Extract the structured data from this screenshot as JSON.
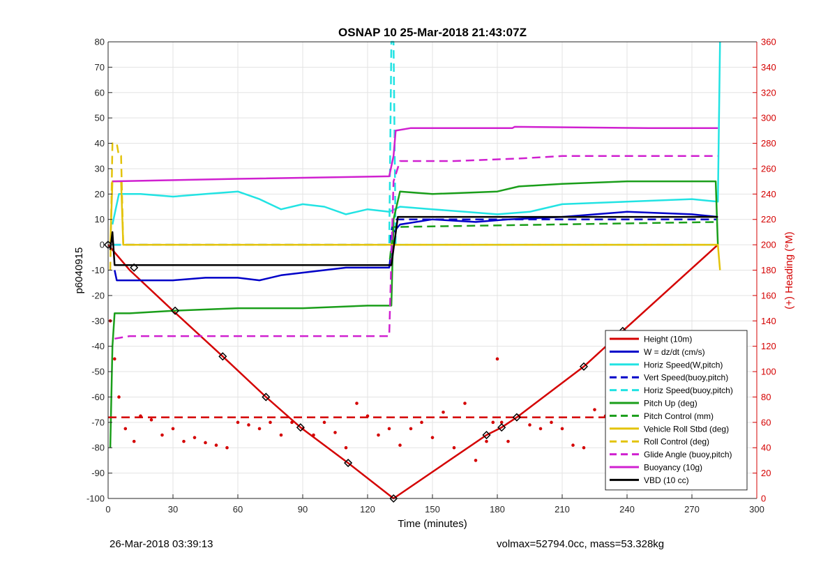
{
  "chart_data": {
    "type": "line",
    "title": "OSNAP 10 25-Mar-2018 21:43:07Z",
    "xlabel": "Time (minutes)",
    "ylabel": "p6040915",
    "ylabel_right": "(+) Heading (°M)",
    "xlim": [
      0,
      300
    ],
    "ylim": [
      -100,
      80
    ],
    "ylim_right": [
      0,
      360
    ],
    "x_ticks": [
      "0",
      "30",
      "60",
      "90",
      "120",
      "150",
      "180",
      "210",
      "240",
      "270",
      "300"
    ],
    "y_ticks": [
      "80",
      "70",
      "60",
      "50",
      "40",
      "30",
      "20",
      "10",
      "0",
      "-10",
      "-20",
      "-30",
      "-40",
      "-50",
      "-60",
      "-70",
      "-80",
      "-90",
      "-100"
    ],
    "y_right_ticks": [
      "360",
      "340",
      "320",
      "300",
      "280",
      "260",
      "240",
      "220",
      "200",
      "180",
      "160",
      "140",
      "120",
      "100",
      "80",
      "60",
      "40",
      "20",
      "0"
    ],
    "grid": true,
    "legend_position": "bottom-right",
    "series": [
      {
        "name": "Height (10m)",
        "color": "#d40000",
        "dash": "solid",
        "x": [
          0,
          10,
          30,
          53,
          73,
          89,
          111,
          132,
          175,
          182,
          189,
          220,
          238,
          282
        ],
        "y": [
          0,
          -10,
          -26,
          -44,
          -60,
          -72,
          -86,
          -100,
          -75,
          -72,
          -68,
          -48,
          -34,
          0
        ]
      },
      {
        "name": "W = dz/dt (cm/s)",
        "color": "#0000c8",
        "dash": "solid",
        "x": [
          3,
          4,
          10,
          20,
          30,
          45,
          60,
          70,
          80,
          90,
          100,
          110,
          120,
          130,
          132,
          135,
          150,
          170,
          185,
          210,
          240,
          270,
          282
        ],
        "y": [
          -10,
          -14,
          -14,
          -14,
          -14,
          -13,
          -13,
          -14,
          -12,
          -11,
          -10,
          -9,
          -9,
          -9,
          5,
          8,
          10,
          9,
          10,
          11,
          13,
          12,
          11
        ]
      },
      {
        "name": "Horiz Speed(W,pitch)",
        "color": "#22e3e3",
        "dash": "solid",
        "x": [
          2,
          5,
          15,
          30,
          45,
          60,
          70,
          80,
          90,
          100,
          110,
          120,
          130,
          135,
          150,
          165,
          180,
          195,
          210,
          240,
          270,
          282,
          283
        ],
        "y": [
          8,
          20,
          20,
          19,
          20,
          21,
          18,
          14,
          16,
          15,
          12,
          14,
          13,
          15,
          14,
          13,
          12,
          13,
          16,
          17,
          18,
          17,
          80
        ]
      },
      {
        "name": "Vert Speed(buoy,pitch)",
        "color": "#0000c8",
        "dash": "dashed",
        "x": [
          2,
          130,
          132,
          282
        ],
        "y": [
          0,
          0,
          10,
          10
        ]
      },
      {
        "name": "Horiz Speed(buoy,pitch)",
        "color": "#22e3e3",
        "dash": "dashed",
        "x": [
          2,
          130,
          131,
          132,
          133,
          282
        ],
        "y": [
          0,
          0,
          80,
          80,
          0,
          0
        ]
      },
      {
        "name": "Pitch Up (deg)",
        "color": "#1a9e1a",
        "dash": "solid",
        "x": [
          1,
          2,
          3,
          10,
          30,
          60,
          90,
          120,
          131,
          132,
          135,
          150,
          180,
          190,
          210,
          240,
          270,
          281,
          282
        ],
        "y": [
          -80,
          -40,
          -27,
          -27,
          -26,
          -25,
          -25,
          -24,
          -24,
          10,
          21,
          20,
          21,
          23,
          24,
          25,
          25,
          25,
          0
        ]
      },
      {
        "name": "Pitch Control (mm)",
        "color": "#1a9e1a",
        "dash": "dashed",
        "x": [
          10,
          130,
          132,
          282
        ],
        "y": [
          -8,
          -8,
          7,
          9
        ]
      },
      {
        "name": "Vehicle Roll Stbd (deg)",
        "color": "#e3c30b",
        "dash": "solid",
        "x": [
          1,
          2,
          6,
          7,
          10,
          130,
          131,
          160,
          180,
          210,
          280,
          282,
          283
        ],
        "y": [
          0,
          25,
          25,
          0,
          0,
          0,
          0,
          0,
          0,
          0,
          0,
          0,
          -10
        ]
      },
      {
        "name": "Roll Control (deg)",
        "color": "#e3c30b",
        "dash": "dashed",
        "x": [
          1,
          2,
          4,
          5,
          6,
          7,
          130,
          180,
          282
        ],
        "y": [
          -10,
          40,
          40,
          35,
          35,
          0,
          0,
          0,
          0
        ]
      },
      {
        "name": "Glide Angle (buoy,pitch)",
        "color": "#d020d0",
        "dash": "dashed",
        "x": [
          3,
          10,
          40,
          70,
          100,
          130,
          132,
          135,
          160,
          190,
          210,
          240,
          282
        ],
        "y": [
          -37,
          -36,
          -36,
          -36,
          -36,
          -36,
          25,
          33,
          33,
          34,
          35,
          35,
          35
        ]
      },
      {
        "name": "Buoyancy (10g)",
        "color": "#d020d0",
        "dash": "solid",
        "x": [
          2,
          60,
          130,
          132,
          133,
          140,
          180,
          187,
          188,
          250,
          282
        ],
        "y": [
          25,
          26,
          27,
          35,
          45,
          46,
          46,
          46,
          46.5,
          46,
          46
        ]
      },
      {
        "name": "VBD (10 cc)",
        "color": "#000000",
        "dash": "solid",
        "x": [
          1,
          2,
          3,
          130,
          131,
          134,
          187,
          188,
          282
        ],
        "y": [
          -2,
          5,
          -8,
          -8,
          -8,
          11,
          11,
          11,
          11
        ]
      },
      {
        "name": "Heading",
        "axis": "right",
        "color": "#d40000",
        "dash": "none",
        "x": [
          1,
          3,
          5,
          8,
          12,
          15,
          20,
          25,
          30,
          35,
          40,
          45,
          50,
          55,
          60,
          65,
          70,
          75,
          80,
          85,
          90,
          95,
          100,
          105,
          110,
          115,
          120,
          125,
          130,
          135,
          140,
          145,
          150,
          155,
          160,
          165,
          170,
          175,
          178,
          180,
          182,
          185,
          190,
          195,
          200,
          205,
          210,
          215,
          220,
          225,
          230,
          235,
          240,
          245,
          250,
          255,
          260,
          265,
          270,
          275,
          280,
          282
        ],
        "y": [
          140,
          110,
          80,
          55,
          45,
          65,
          62,
          50,
          55,
          45,
          48,
          44,
          42,
          40,
          60,
          58,
          55,
          60,
          50,
          60,
          55,
          50,
          60,
          52,
          40,
          75,
          65,
          50,
          55,
          42,
          55,
          60,
          48,
          68,
          40,
          75,
          30,
          45,
          60,
          110,
          60,
          45,
          65,
          58,
          55,
          60,
          55,
          42,
          40,
          70,
          65,
          45,
          70,
          80,
          65,
          60,
          58,
          55,
          62,
          55,
          45,
          35
        ]
      },
      {
        "name": "Heading mean",
        "axis": "right",
        "color": "#d40000",
        "dash": "dashed",
        "x": [
          0,
          282
        ],
        "y": [
          64,
          64
        ]
      }
    ],
    "markers": {
      "x": [
        0,
        12,
        31,
        53,
        73,
        89,
        111,
        132,
        175,
        182,
        189,
        220,
        238
      ],
      "y": [
        0,
        -9,
        -26,
        -44,
        -60,
        -72,
        -86,
        -100,
        -75,
        -72,
        -68,
        -48,
        -34
      ]
    }
  },
  "footer": {
    "left": "26-Mar-2018 03:39:13",
    "right": "volmax=52794.0cc, mass=53.328kg"
  }
}
